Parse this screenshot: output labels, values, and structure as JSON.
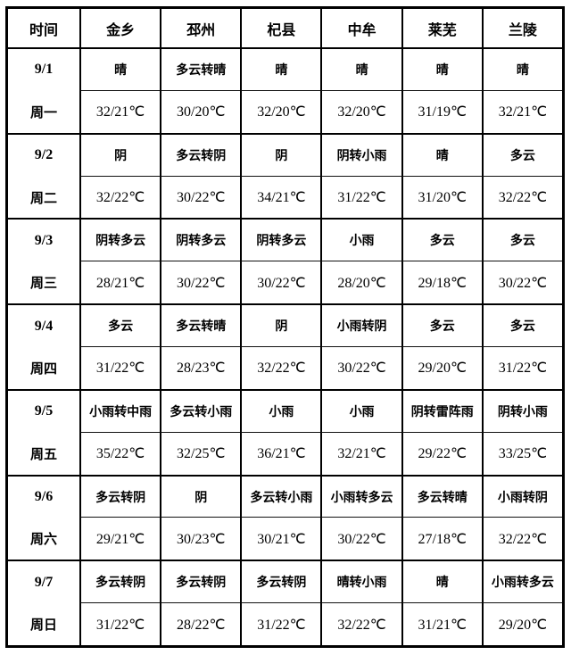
{
  "table": {
    "header": {
      "time_label": "时间",
      "cities": [
        "金乡",
        "邳州",
        "杞县",
        "中牟",
        "莱芜",
        "兰陵"
      ]
    },
    "days": [
      {
        "date": "9/1",
        "weekday": "周一",
        "weather": [
          "晴",
          "多云转晴",
          "晴",
          "晴",
          "晴",
          "晴"
        ],
        "temps": [
          "32/21℃",
          "30/20℃",
          "32/20℃",
          "32/20℃",
          "31/19℃",
          "32/21℃"
        ]
      },
      {
        "date": "9/2",
        "weekday": "周二",
        "weather": [
          "阴",
          "多云转阴",
          "阴",
          "阴转小雨",
          "晴",
          "多云"
        ],
        "temps": [
          "32/22℃",
          "30/22℃",
          "34/21℃",
          "31/22℃",
          "31/20℃",
          "32/22℃"
        ]
      },
      {
        "date": "9/3",
        "weekday": "周三",
        "weather": [
          "阴转多云",
          "阴转多云",
          "阴转多云",
          "小雨",
          "多云",
          "多云"
        ],
        "temps": [
          "28/21℃",
          "30/22℃",
          "30/22℃",
          "28/20℃",
          "29/18℃",
          "30/22℃"
        ]
      },
      {
        "date": "9/4",
        "weekday": "周四",
        "weather": [
          "多云",
          "多云转晴",
          "阴",
          "小雨转阴",
          "多云",
          "多云"
        ],
        "temps": [
          "31/22℃",
          "28/23℃",
          "32/22℃",
          "30/22℃",
          "29/20℃",
          "31/22℃"
        ]
      },
      {
        "date": "9/5",
        "weekday": "周五",
        "weather": [
          "小雨转中雨",
          "多云转小雨",
          "小雨",
          "小雨",
          "阴转雷阵雨",
          "阴转小雨"
        ],
        "temps": [
          "35/22℃",
          "32/25℃",
          "36/21℃",
          "32/21℃",
          "29/22℃",
          "33/25℃"
        ]
      },
      {
        "date": "9/6",
        "weekday": "周六",
        "weather": [
          "多云转阴",
          "阴",
          "多云转小雨",
          "小雨转多云",
          "多云转晴",
          "小雨转阴"
        ],
        "temps": [
          "29/21℃",
          "30/23℃",
          "30/21℃",
          "30/22℃",
          "27/18℃",
          "32/22℃"
        ]
      },
      {
        "date": "9/7",
        "weekday": "周日",
        "weather": [
          "多云转阴",
          "多云转阴",
          "多云转阴",
          "晴转小雨",
          "晴",
          "小雨转多云"
        ],
        "temps": [
          "31/22℃",
          "28/22℃",
          "31/22℃",
          "32/22℃",
          "31/21℃",
          "29/20℃"
        ]
      }
    ]
  }
}
